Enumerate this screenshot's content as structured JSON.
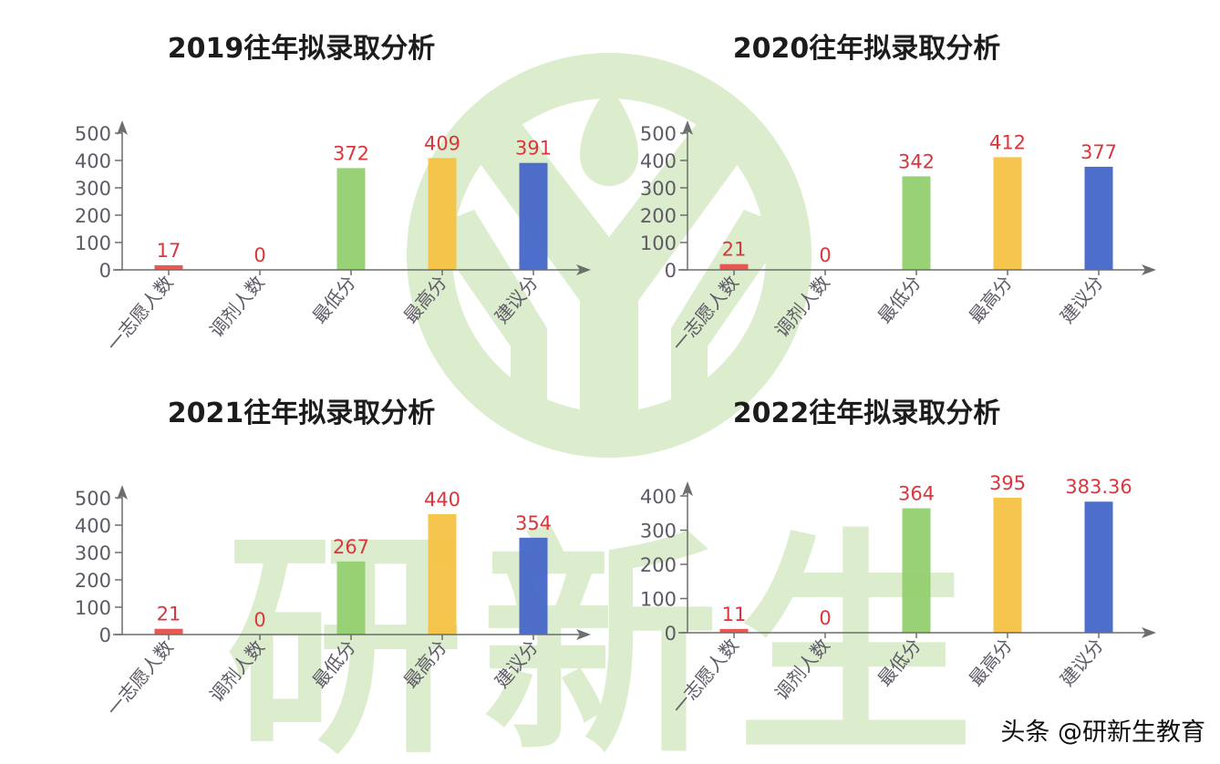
{
  "watermark": {
    "text": "研新生",
    "color": "#dbeccd"
  },
  "source_credit": "头条 @研新生教育",
  "colors": {
    "axis": "#6b6f6a",
    "value_label": "#d9363e",
    "tick_label": "#5f5a66",
    "bars": [
      "#e6514b",
      "#e6514b",
      "#93cf6f",
      "#f5c243",
      "#4466c8"
    ]
  },
  "chart_data": [
    {
      "type": "bar",
      "title": "2019往年拟录取分析",
      "categories": [
        "一志愿人数",
        "调剂人数",
        "最低分",
        "最高分",
        "建议分"
      ],
      "values": [
        17,
        0,
        372,
        409,
        391
      ],
      "value_labels": [
        "17",
        "0",
        "372",
        "409",
        "391"
      ],
      "yticks": [
        0,
        100,
        200,
        300,
        400,
        500
      ],
      "ylim": [
        0,
        500
      ],
      "xlabel": "",
      "ylabel": "",
      "grid": false,
      "legend": "none"
    },
    {
      "type": "bar",
      "title": "2020往年拟录取分析",
      "categories": [
        "一志愿人数",
        "调剂人数",
        "最低分",
        "最高分",
        "建议分"
      ],
      "values": [
        21,
        0,
        342,
        412,
        377
      ],
      "value_labels": [
        "21",
        "0",
        "342",
        "412",
        "377"
      ],
      "yticks": [
        0,
        100,
        200,
        300,
        400,
        500
      ],
      "ylim": [
        0,
        500
      ],
      "xlabel": "",
      "ylabel": "",
      "grid": false,
      "legend": "none"
    },
    {
      "type": "bar",
      "title": "2021往年拟录取分析",
      "categories": [
        "一志愿人数",
        "调剂人数",
        "最低分",
        "最高分",
        "建议分"
      ],
      "values": [
        21,
        0,
        267,
        440,
        354
      ],
      "value_labels": [
        "21",
        "0",
        "267",
        "440",
        "354"
      ],
      "yticks": [
        0,
        100,
        200,
        300,
        400,
        500
      ],
      "ylim": [
        0,
        500
      ],
      "xlabel": "",
      "ylabel": "",
      "grid": false,
      "legend": "none"
    },
    {
      "type": "bar",
      "title": "2022往年拟录取分析",
      "categories": [
        "一志愿人数",
        "调剂人数",
        "最低分",
        "最高分",
        "建议分"
      ],
      "values": [
        11,
        0,
        364,
        395,
        383.36
      ],
      "value_labels": [
        "11",
        "0",
        "364",
        "395",
        "383.36"
      ],
      "yticks": [
        0,
        100,
        200,
        300,
        400
      ],
      "ylim": [
        0,
        400
      ],
      "xlabel": "",
      "ylabel": "",
      "grid": false,
      "legend": "none"
    }
  ]
}
